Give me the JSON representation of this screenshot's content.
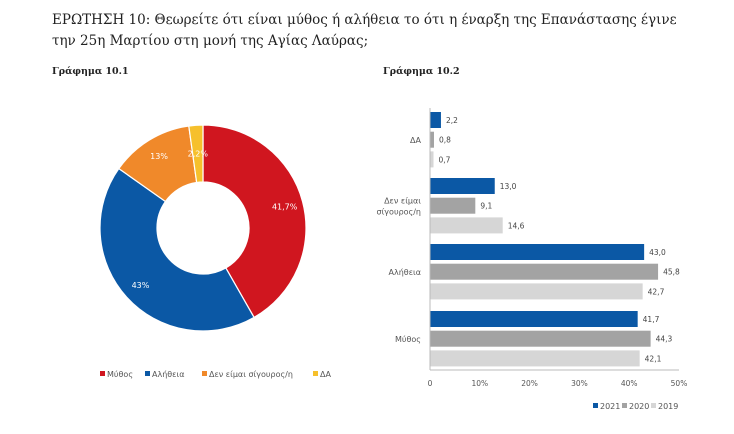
{
  "title": "ΕΡΩΤΗΣΗ 10: Θεωρείτε ότι είναι μύθος ή αλήθεια το ότι η έναρξη της Επανάστασης έγινε την 25η Μαρτίου στη μονή της Αγίας Λαύρας;",
  "chart_data": [
    {
      "type": "pie",
      "title": "Γράφημα 10.1",
      "donut": true,
      "legend_position": "bottom",
      "slices": [
        {
          "name": "Μύθος",
          "value": 41.7,
          "label": "41,7%",
          "color": "#d0161f"
        },
        {
          "name": "Αλήθεια",
          "value": 43,
          "label": "43%",
          "color": "#0b58a5"
        },
        {
          "name": "Δεν είμαι σίγουρος/η",
          "value": 13,
          "label": "13%",
          "color": "#f0892a"
        },
        {
          "name": "ΔΑ",
          "value": 2.2,
          "label": "2,2%",
          "color": "#f6c02c"
        }
      ]
    },
    {
      "type": "bar",
      "orientation": "horizontal",
      "title": "Γράφημα 10.2",
      "categories": [
        "ΔΑ",
        "Δεν είμαι σίγουρος/η",
        "Αλήθεια",
        "Μύθος"
      ],
      "category_lines": [
        [
          "ΔΑ"
        ],
        [
          "Δεν είμαι",
          "σίγουρος/η"
        ],
        [
          "Αλήθεια"
        ],
        [
          "Μύθος"
        ]
      ],
      "series": [
        {
          "name": "2021",
          "color": "#0b58a5",
          "values": [
            2.2,
            13.0,
            43.0,
            41.7
          ],
          "labels": [
            "2,2",
            "13,0",
            "43,0",
            "41,7"
          ]
        },
        {
          "name": "2020",
          "color": "#a3a3a3",
          "values": [
            0.8,
            9.1,
            45.8,
            44.3
          ],
          "labels": [
            "0,8",
            "9,1",
            "45,8",
            "44,3"
          ]
        },
        {
          "name": "2019",
          "color": "#d6d6d6",
          "values": [
            0.7,
            14.6,
            42.7,
            42.1
          ],
          "labels": [
            "0,7",
            "14,6",
            "42,7",
            "42,1"
          ]
        }
      ],
      "xlim": [
        0,
        50
      ],
      "xticks": [
        "0",
        "10%",
        "20%",
        "30%",
        "40%",
        "50%"
      ],
      "grid": false,
      "legend_position": "bottom-right"
    }
  ]
}
